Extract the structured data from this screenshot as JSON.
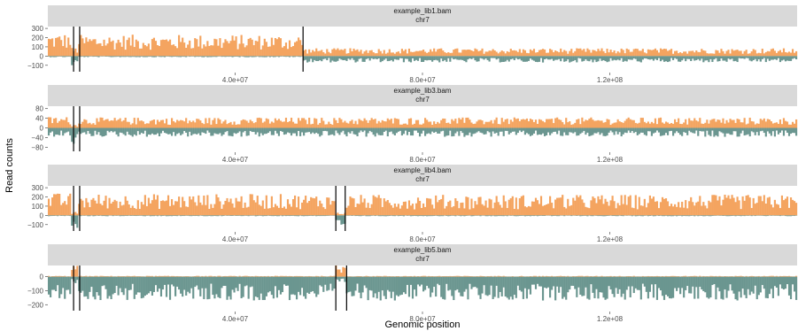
{
  "chart_data": {
    "type": "bar",
    "xlabel": "Genomic position",
    "ylabel": "Read counts",
    "xlim": [
      0,
      160000000
    ],
    "x_ticks": [
      {
        "value": 40000000,
        "label": "4.0e+07"
      },
      {
        "value": 80000000,
        "label": "8.0e+07"
      },
      {
        "value": 120000000,
        "label": "1.2e+08"
      }
    ],
    "colors": {
      "watson": "#f4a460",
      "crick": "#6b9690",
      "strip": "#d9d9d9",
      "break_line": "#000000"
    },
    "panels": [
      {
        "library": "example_lib1.bam",
        "chromosome": "chr7",
        "ylim": [
          -150,
          320
        ],
        "y_ticks": [
          {
            "value": 300,
            "label": "300"
          },
          {
            "value": 200,
            "label": "200"
          },
          {
            "value": 100,
            "label": "100"
          },
          {
            "value": 0,
            "label": "0"
          },
          {
            "value": -100,
            "label": "−100"
          }
        ],
        "segments": [
          {
            "start": 0,
            "end": 5000000,
            "watson": 160,
            "crick": 8
          },
          {
            "start": 5000000,
            "end": 6500000,
            "watson": 60,
            "crick": 70
          },
          {
            "start": 6500000,
            "end": 54500000,
            "watson": 150,
            "crick": 8
          },
          {
            "start": 54500000,
            "end": 160000000,
            "watson": 55,
            "crick": 45
          }
        ],
        "breakpoints": [
          5500000,
          6800000,
          54500000
        ]
      },
      {
        "library": "example_lib3.bam",
        "chromosome": "chr7",
        "ylim": [
          -90,
          90
        ],
        "y_ticks": [
          {
            "value": 80,
            "label": "80"
          },
          {
            "value": 40,
            "label": "40"
          },
          {
            "value": 0,
            "label": "0"
          },
          {
            "value": -40,
            "label": "−40"
          },
          {
            "value": -80,
            "label": "−80"
          }
        ],
        "segments": [
          {
            "start": 0,
            "end": 5000000,
            "watson": 30,
            "crick": 24
          },
          {
            "start": 5000000,
            "end": 6500000,
            "watson": 10,
            "crick": 45
          },
          {
            "start": 6500000,
            "end": 160000000,
            "watson": 28,
            "crick": 24
          }
        ],
        "breakpoints": [
          5500000,
          6800000
        ]
      },
      {
        "library": "example_lib4.bam",
        "chromosome": "chr7",
        "ylim": [
          -150,
          320
        ],
        "y_ticks": [
          {
            "value": 300,
            "label": "300"
          },
          {
            "value": 200,
            "label": "200"
          },
          {
            "value": 100,
            "label": "100"
          },
          {
            "value": 0,
            "label": "0"
          },
          {
            "value": -100,
            "label": "−100"
          }
        ],
        "segments": [
          {
            "start": 0,
            "end": 5000000,
            "watson": 155,
            "crick": 6
          },
          {
            "start": 5000000,
            "end": 6500000,
            "watson": 25,
            "crick": 90
          },
          {
            "start": 6500000,
            "end": 61500000,
            "watson": 150,
            "crick": 6
          },
          {
            "start": 61500000,
            "end": 63500000,
            "watson": 20,
            "crick": 90
          },
          {
            "start": 63500000,
            "end": 160000000,
            "watson": 145,
            "crick": 6
          }
        ],
        "breakpoints": [
          5500000,
          6800000,
          61500000,
          63500000
        ]
      },
      {
        "library": "example_lib5.bam",
        "chromosome": "chr7",
        "ylim": [
          -230,
          80
        ],
        "y_ticks": [
          {
            "value": 0,
            "label": "0"
          },
          {
            "value": -100,
            "label": "−100"
          },
          {
            "value": -200,
            "label": "−200"
          }
        ],
        "segments": [
          {
            "start": 0,
            "end": 5000000,
            "watson": 4,
            "crick": 110
          },
          {
            "start": 5000000,
            "end": 6500000,
            "watson": 55,
            "crick": 30
          },
          {
            "start": 6500000,
            "end": 61500000,
            "watson": 4,
            "crick": 110
          },
          {
            "start": 61500000,
            "end": 63500000,
            "watson": 55,
            "crick": 30
          },
          {
            "start": 63500000,
            "end": 160000000,
            "watson": 4,
            "crick": 110
          }
        ],
        "breakpoints": [
          5500000,
          6800000,
          61500000,
          63800000
        ]
      }
    ]
  }
}
